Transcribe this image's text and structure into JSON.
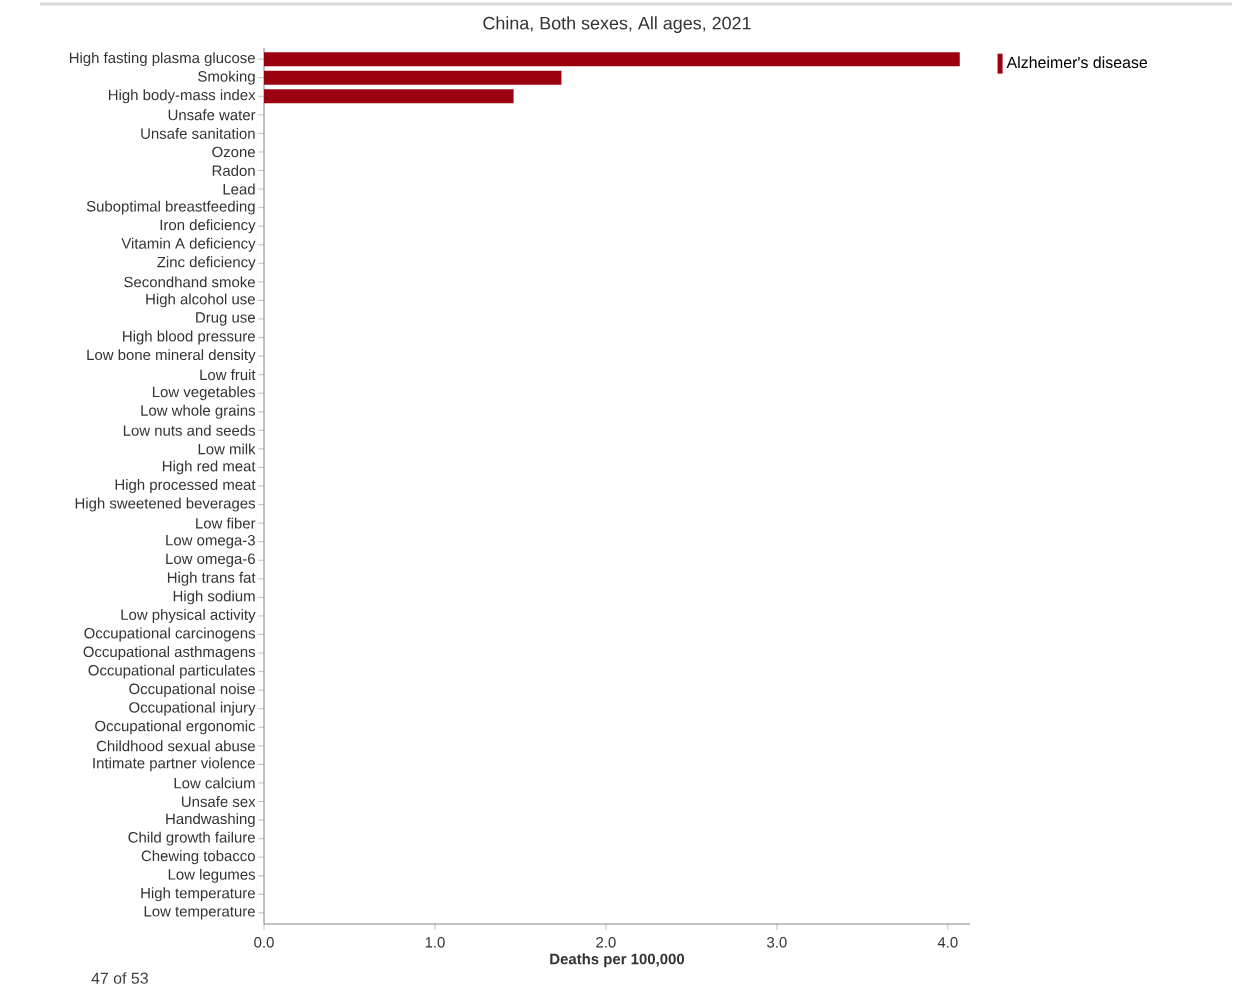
{
  "chart_data": {
    "type": "bar",
    "orientation": "horizontal",
    "title": "China, Both sexes, All ages, 2021",
    "xlabel": "Deaths per 100,000",
    "categories": [
      "High fasting plasma glucose",
      "Smoking",
      "High body-mass index",
      "Unsafe water",
      "Unsafe sanitation",
      "Ozone",
      "Radon",
      "Lead",
      "Suboptimal breastfeeding",
      "Iron deficiency",
      "Vitamin A deficiency",
      "Zinc deficiency",
      "Secondhand smoke",
      "High alcohol use",
      "Drug use",
      "High blood pressure",
      "Low bone mineral density",
      "Low fruit",
      "Low vegetables",
      "Low whole grains",
      "Low nuts and seeds",
      "Low milk",
      "High red meat",
      "High processed meat",
      "High sweetened beverages",
      "Low fiber",
      "Low omega-3",
      "Low omega-6",
      "High trans fat",
      "High sodium",
      "Low physical activity",
      "Occupational carcinogens",
      "Occupational asthmagens",
      "Occupational particulates",
      "Occupational noise",
      "Occupational injury",
      "Occupational ergonomic",
      "Childhood sexual abuse",
      "Intimate partner violence",
      "Low calcium",
      "Unsafe sex",
      "Handwashing",
      "Child growth failure",
      "Chewing tobacco",
      "Low legumes",
      "High temperature",
      "Low temperature"
    ],
    "series": [
      {
        "name": "Alzheimer's disease",
        "color": "#9b0010",
        "values": [
          4.07,
          1.74,
          1.46,
          0,
          0,
          0,
          0,
          0,
          0,
          0,
          0,
          0,
          0,
          0,
          0,
          0,
          0,
          0,
          0,
          0,
          0,
          0,
          0,
          0,
          0,
          0,
          0,
          0,
          0,
          0,
          0,
          0,
          0,
          0,
          0,
          0,
          0,
          0,
          0,
          0,
          0,
          0,
          0,
          0,
          0,
          0,
          0
        ]
      }
    ],
    "xlim": [
      0,
      4.13
    ],
    "xticks": [
      {
        "value": 0,
        "label": "0.0"
      },
      {
        "value": 1,
        "label": "1.0"
      },
      {
        "value": 2,
        "label": "2.0"
      },
      {
        "value": 3,
        "label": "3.0"
      },
      {
        "value": 4,
        "label": "4.0"
      }
    ],
    "legend": "top right",
    "grid": false,
    "annotations": [
      "47 of 53"
    ]
  }
}
